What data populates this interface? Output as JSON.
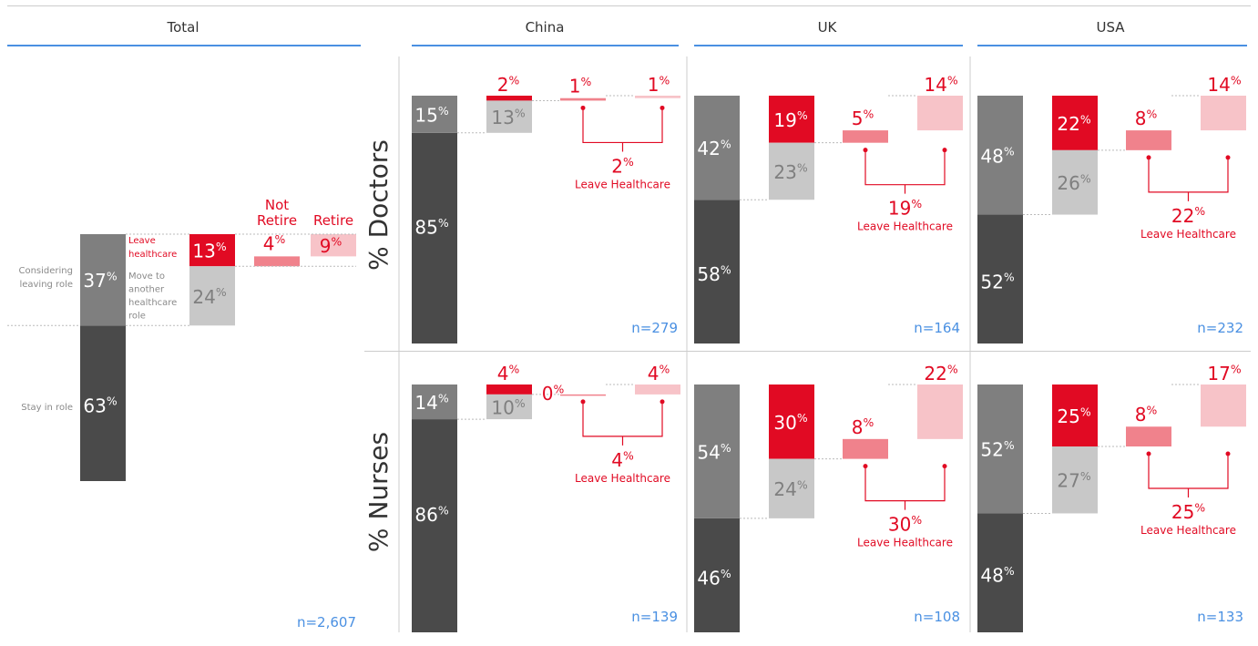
{
  "colors": {
    "stay": "#4a4a4a",
    "considering": "#7f7f7f",
    "move": "#c8c8c8",
    "leave": "#e10a23",
    "not_retire": "#f0828c",
    "retire": "#f7c3c8",
    "accent_blue": "#4a90e2",
    "red_text": "#e10a23",
    "grey_text": "#7f7f7f",
    "label_grey": "#8a8a8a",
    "rule": "#cccccc"
  },
  "headers": [
    "Total",
    "China",
    "UK",
    "USA"
  ],
  "row_labels": [
    "% Doctors",
    "% Nurses"
  ],
  "total_labels": {
    "considering": [
      "Considering",
      "leaving role"
    ],
    "stay": "Stay in role",
    "leave": [
      "Leave",
      "healthcare"
    ],
    "move": [
      "Move to",
      "another",
      "healthcare",
      "role"
    ],
    "not_retire": [
      "Not",
      "Retire"
    ],
    "retire": "Retire"
  },
  "percent_sign": "%",
  "leave_healthcare_label": "Leave Healthcare",
  "chart_data": {
    "type": "bar",
    "subtype": "waterfall",
    "series_order": [
      "Stay in role",
      "Considering leaving role",
      "Leave healthcare",
      "Move to another healthcare role",
      "Not Retire",
      "Retire"
    ],
    "total": {
      "n": "n=2,607",
      "stay": 63,
      "considering": 37,
      "leave": 13,
      "move": 24,
      "not_retire": 4,
      "retire": 9
    },
    "doctors": {
      "China": {
        "n": "n=279",
        "stay": 85,
        "considering": 15,
        "leave": 2,
        "move": 13,
        "not_retire": 1,
        "retire": 1,
        "leave_healthcare": 2
      },
      "UK": {
        "n": "n=164",
        "stay": 58,
        "considering": 42,
        "leave": 19,
        "move": 23,
        "not_retire": 5,
        "retire": 14,
        "leave_healthcare": 19
      },
      "USA": {
        "n": "n=232",
        "stay": 52,
        "considering": 48,
        "leave": 22,
        "move": 26,
        "not_retire": 8,
        "retire": 14,
        "leave_healthcare": 22
      }
    },
    "nurses": {
      "China": {
        "n": "n=139",
        "stay": 86,
        "considering": 14,
        "leave": 4,
        "move": 10,
        "not_retire": 0,
        "retire": 4,
        "leave_healthcare": 4
      },
      "UK": {
        "n": "n=108",
        "stay": 46,
        "considering": 54,
        "leave": 30,
        "move": 24,
        "not_retire": 8,
        "retire": 22,
        "leave_healthcare": 30
      },
      "USA": {
        "n": "n=133",
        "stay": 48,
        "considering": 52,
        "leave": 25,
        "move": 27,
        "not_retire": 8,
        "retire": 17,
        "leave_healthcare": 25
      }
    }
  }
}
